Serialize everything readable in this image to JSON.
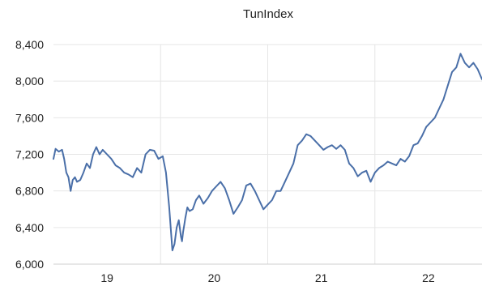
{
  "chart_data": {
    "type": "line",
    "title": "TunIndex",
    "xlabel": "",
    "ylabel": "",
    "x_ticks": [
      {
        "label": "19",
        "value": 2019.0
      },
      {
        "label": "20",
        "value": 2020.0
      },
      {
        "label": "21",
        "value": 2021.0
      },
      {
        "label": "22",
        "value": 2022.0
      }
    ],
    "y_ticks": [
      {
        "label": "6,000",
        "value": 6000
      },
      {
        "label": "6,400",
        "value": 6400
      },
      {
        "label": "6,800",
        "value": 6800
      },
      {
        "label": "7,200",
        "value": 7200
      },
      {
        "label": "7,600",
        "value": 7600
      },
      {
        "label": "8,000",
        "value": 8000
      },
      {
        "label": "8,400",
        "value": 8400
      }
    ],
    "xlim": [
      2018.5,
      2022.5
    ],
    "ylim": [
      6000,
      8400
    ],
    "grid": {
      "horizontal": true,
      "vertical": true
    },
    "legend": "none",
    "colors": {
      "series": "#4a6fa8",
      "grid": "#e6e6e6",
      "axis": "#cfcfcf",
      "text": "#222222"
    },
    "series": [
      {
        "x": [
          2018.5,
          2018.52,
          2018.55,
          2018.58,
          2018.6,
          2018.62,
          2018.64,
          2018.66,
          2018.68,
          2018.7,
          2018.72,
          2018.75,
          2018.78,
          2018.81,
          2018.84,
          2018.87,
          2018.9,
          2018.93,
          2018.96,
          2019.0,
          2019.04,
          2019.08,
          2019.12,
          2019.16,
          2019.2,
          2019.24,
          2019.28,
          2019.32,
          2019.36,
          2019.4,
          2019.44,
          2019.48,
          2019.52,
          2019.55,
          2019.58,
          2019.61,
          2019.63,
          2019.65,
          2019.67,
          2019.69,
          2019.7,
          2019.71,
          2019.72,
          2019.73,
          2019.75,
          2019.77,
          2019.8,
          2019.83,
          2019.86,
          2019.9,
          2019.94,
          2019.98,
          2020.02,
          2020.06,
          2020.1,
          2020.14,
          2020.18,
          2020.22,
          2020.26,
          2020.3,
          2020.34,
          2020.38,
          2020.42,
          2020.46,
          2020.5,
          2020.54,
          2020.58,
          2020.62,
          2020.66,
          2020.7,
          2020.74,
          2020.78,
          2020.82,
          2020.86,
          2020.9,
          2020.94,
          2020.98,
          2021.02,
          2021.06,
          2021.1,
          2021.14,
          2021.18,
          2021.22,
          2021.26,
          2021.3,
          2021.34,
          2021.38,
          2021.42,
          2021.46,
          2021.5,
          2021.54,
          2021.58,
          2021.62,
          2021.66,
          2021.7,
          2021.74,
          2021.78,
          2021.82,
          2021.86,
          2021.9,
          2021.94,
          2021.98,
          2022.02,
          2022.06,
          2022.1,
          2022.14,
          2022.18,
          2022.22,
          2022.26,
          2022.3,
          2022.34,
          2022.38,
          2022.42,
          2022.46,
          2022.5
        ],
        "y": [
          7150,
          7260,
          7230,
          7250,
          7150,
          7000,
          6950,
          6800,
          6920,
          6950,
          6900,
          6920,
          7000,
          7100,
          7050,
          7200,
          7280,
          7200,
          7250,
          7200,
          7150,
          7080,
          7050,
          7000,
          6980,
          6950,
          7050,
          7000,
          7200,
          7250,
          7240,
          7150,
          7180,
          7000,
          6630,
          6150,
          6220,
          6400,
          6480,
          6300,
          6250,
          6350,
          6420,
          6500,
          6620,
          6580,
          6600,
          6700,
          6750,
          6660,
          6720,
          6800,
          6850,
          6900,
          6830,
          6700,
          6550,
          6620,
          6700,
          6860,
          6880,
          6800,
          6700,
          6600,
          6650,
          6700,
          6800,
          6800,
          6900,
          7000,
          7100,
          7300,
          7350,
          7420,
          7400,
          7350,
          7300,
          7250,
          7280,
          7300,
          7260,
          7300,
          7250,
          7100,
          7050,
          6960,
          7000,
          7020,
          6900,
          7000,
          7050,
          7080,
          7120,
          7100,
          7080,
          7150,
          7120,
          7180,
          7300,
          7320,
          7400,
          7500,
          7550,
          7600,
          7700,
          7800,
          7950,
          8100,
          8150,
          8300,
          8200,
          8150,
          8200,
          8130,
          8020
        ]
      }
    ]
  }
}
